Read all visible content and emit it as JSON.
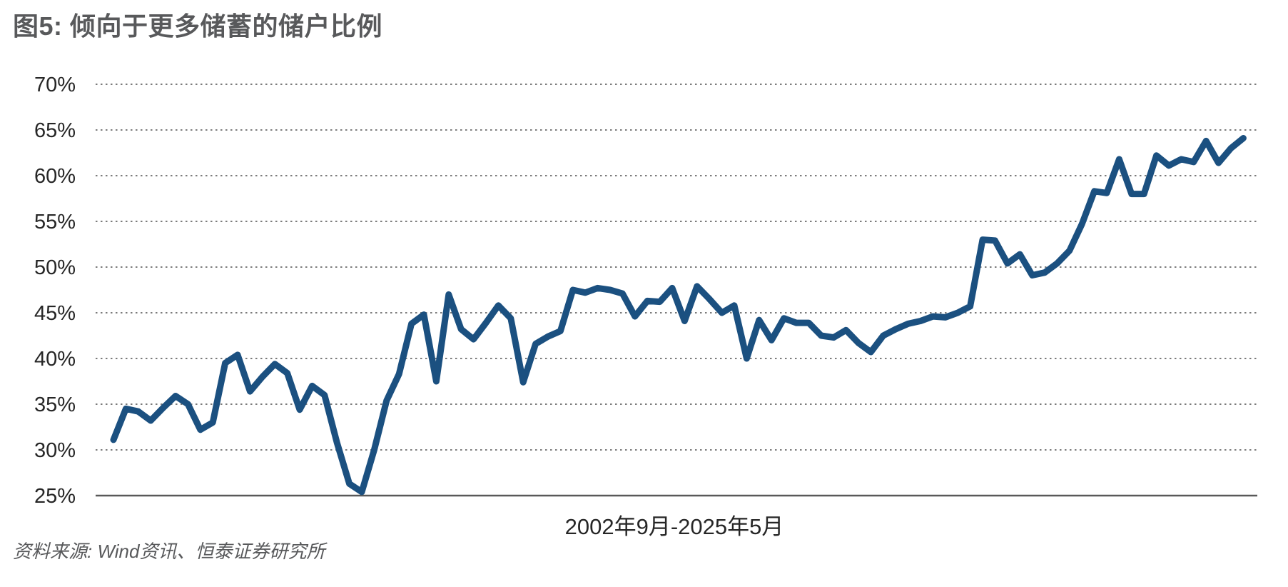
{
  "title": "图5: 倾向于更多储蓄的储户比例",
  "source_note": "资料来源: Wind资讯、恒泰证券研究所",
  "colors": {
    "line": "#1b5080",
    "title_text": "#58595b",
    "axis_text": "#262626",
    "gridline": "#7b7b7b",
    "baseline": "#595959",
    "background": "#ffffff"
  },
  "chart_data": {
    "type": "line",
    "title": "图5: 倾向于更多储蓄的储户比例",
    "xlabel": "2002年9月-2025年5月",
    "ylabel": "",
    "unit": "%",
    "ylim": [
      25,
      70
    ],
    "y_ticks": [
      70,
      65,
      60,
      55,
      50,
      45,
      40,
      35,
      30,
      25
    ],
    "y_tick_suffix": "%",
    "grid": "horizontal-dotted",
    "legend_position": "none",
    "x": [
      "2002Q3",
      "2002Q4",
      "2003Q1",
      "2003Q2",
      "2003Q3",
      "2003Q4",
      "2004Q1",
      "2004Q2",
      "2004Q3",
      "2004Q4",
      "2005Q1",
      "2005Q2",
      "2005Q3",
      "2005Q4",
      "2006Q1",
      "2006Q2",
      "2006Q3",
      "2006Q4",
      "2007Q1",
      "2007Q2",
      "2007Q3",
      "2007Q4",
      "2008Q1",
      "2008Q2",
      "2008Q3",
      "2008Q4",
      "2009Q1",
      "2009Q2",
      "2009Q3",
      "2009Q4",
      "2010Q1",
      "2010Q2",
      "2010Q3",
      "2010Q4",
      "2011Q1",
      "2011Q2",
      "2011Q3",
      "2011Q4",
      "2012Q1",
      "2012Q2",
      "2012Q3",
      "2012Q4",
      "2013Q1",
      "2013Q2",
      "2013Q3",
      "2013Q4",
      "2014Q1",
      "2014Q2",
      "2014Q3",
      "2014Q4",
      "2015Q1",
      "2015Q2",
      "2015Q3",
      "2015Q4",
      "2016Q1",
      "2016Q2",
      "2016Q3",
      "2016Q4",
      "2017Q1",
      "2017Q2",
      "2017Q3",
      "2017Q4",
      "2018Q1",
      "2018Q2",
      "2018Q3",
      "2018Q4",
      "2019Q1",
      "2019Q2",
      "2019Q3",
      "2019Q4",
      "2020Q1",
      "2020Q2",
      "2020Q3",
      "2020Q4",
      "2021Q1",
      "2021Q2",
      "2021Q3",
      "2021Q4",
      "2022Q1",
      "2022Q2",
      "2022Q3",
      "2022Q4",
      "2023Q1",
      "2023Q2",
      "2023Q3",
      "2023Q4",
      "2024Q1",
      "2024Q2",
      "2024Q3",
      "2024Q4",
      "2025Q1",
      "2025Q2"
    ],
    "series": [
      {
        "name": "倾向于更多储蓄的储户比例",
        "values": [
          31.1,
          34.5,
          34.2,
          33.2,
          34.6,
          35.9,
          35.0,
          32.2,
          33.0,
          39.5,
          40.4,
          36.4,
          38.0,
          39.4,
          38.4,
          34.4,
          37.0,
          36.0,
          30.8,
          26.3,
          25.4,
          30.0,
          35.4,
          38.3,
          43.8,
          44.8,
          37.5,
          47.0,
          43.2,
          42.1,
          43.9,
          45.8,
          44.4,
          37.4,
          41.6,
          42.4,
          43.0,
          47.5,
          47.2,
          47.7,
          47.5,
          47.1,
          44.6,
          46.3,
          46.2,
          47.7,
          44.1,
          47.9,
          46.5,
          45.0,
          45.8,
          40.0,
          44.2,
          42.0,
          44.4,
          43.9,
          43.9,
          42.5,
          42.3,
          43.1,
          41.7,
          40.7,
          42.5,
          43.2,
          43.8,
          44.1,
          44.6,
          44.5,
          45.0,
          45.7,
          53.0,
          52.9,
          50.4,
          51.4,
          49.1,
          49.4,
          50.4,
          51.8,
          54.7,
          58.3,
          58.1,
          61.8,
          58.0,
          58.0,
          62.2,
          61.1,
          61.8,
          61.5,
          63.8,
          61.4,
          63.0,
          64.1
        ]
      }
    ]
  }
}
